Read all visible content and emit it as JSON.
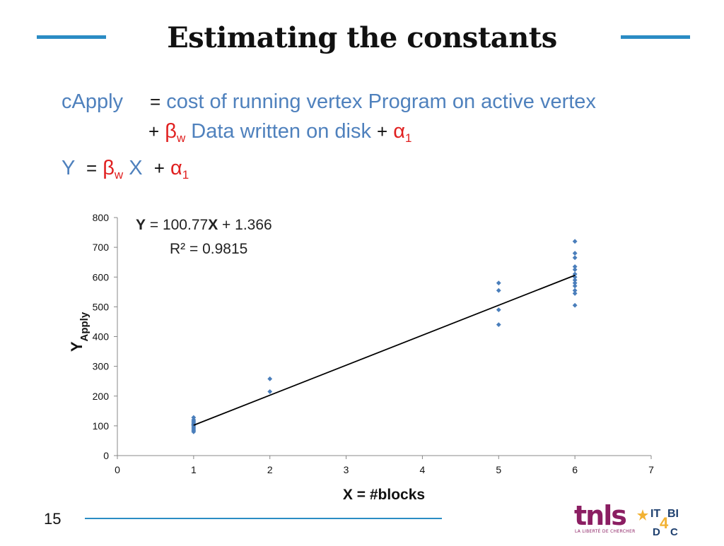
{
  "slide": {
    "title": "Estimating the constants",
    "number": "15",
    "accent_color": "#2b8cc4"
  },
  "equations": {
    "line1_lhs": "cApply",
    "line1_op": "=",
    "line1_text": "cost of running vertex Program on active vertex",
    "line2_op1": "+",
    "line2_beta": "β",
    "line2_beta_sub": "w",
    "line2_text": "Data written on disk",
    "line2_op2": "+",
    "line2_alpha": "α",
    "line2_alpha_sub": "1",
    "line3_lhs": "Y",
    "line3_op1": "=",
    "line3_beta": "β",
    "line3_beta_sub": "w",
    "line3_x": "X",
    "line3_op2": "+",
    "line3_alpha": "α",
    "line3_alpha_sub": "1"
  },
  "chart_data": {
    "type": "scatter",
    "xlabel": "X = #blocks",
    "ylabel": "Y",
    "ylabel_sub": "Apply",
    "xlim": [
      0,
      7
    ],
    "ylim": [
      0,
      800
    ],
    "xticks": [
      "0",
      "1",
      "2",
      "3",
      "4",
      "5",
      "6",
      "7"
    ],
    "yticks": [
      "0",
      "100",
      "200",
      "300",
      "400",
      "500",
      "600",
      "700",
      "800"
    ],
    "grid": false,
    "point_color": "#4a7ebb",
    "series": [
      {
        "x": [
          1,
          1,
          1,
          1,
          1,
          1,
          1,
          1,
          1,
          1,
          1,
          2,
          2,
          5,
          5,
          5,
          5,
          6,
          6,
          6,
          6,
          6,
          6,
          6,
          6,
          6,
          6,
          6,
          6,
          6
        ],
        "y": [
          80,
          85,
          90,
          95,
          100,
          103,
          106,
          110,
          115,
          120,
          128,
          215,
          258,
          440,
          490,
          555,
          580,
          505,
          545,
          555,
          570,
          580,
          590,
          600,
          610,
          625,
          635,
          665,
          680,
          720
        ]
      }
    ],
    "trendline": {
      "slope": 100.77,
      "intercept": 1.366,
      "x_range": [
        1,
        6
      ],
      "color": "#000000"
    },
    "annotation": {
      "eq_y": "Y",
      "eq_mid": " = 100.77",
      "eq_x": "X",
      "eq_end": " + 1.366",
      "r2": "R² = 0.9815"
    }
  },
  "logos": {
    "tnls_text": "tnls",
    "tnls_sub": "LA LIBERTÉ DE CHERCHER",
    "itbi_line1": "IT",
    "itbi_line1b": "BI",
    "itbi_four": "4",
    "itbi_line2": "D",
    "itbi_line2b": "C"
  }
}
